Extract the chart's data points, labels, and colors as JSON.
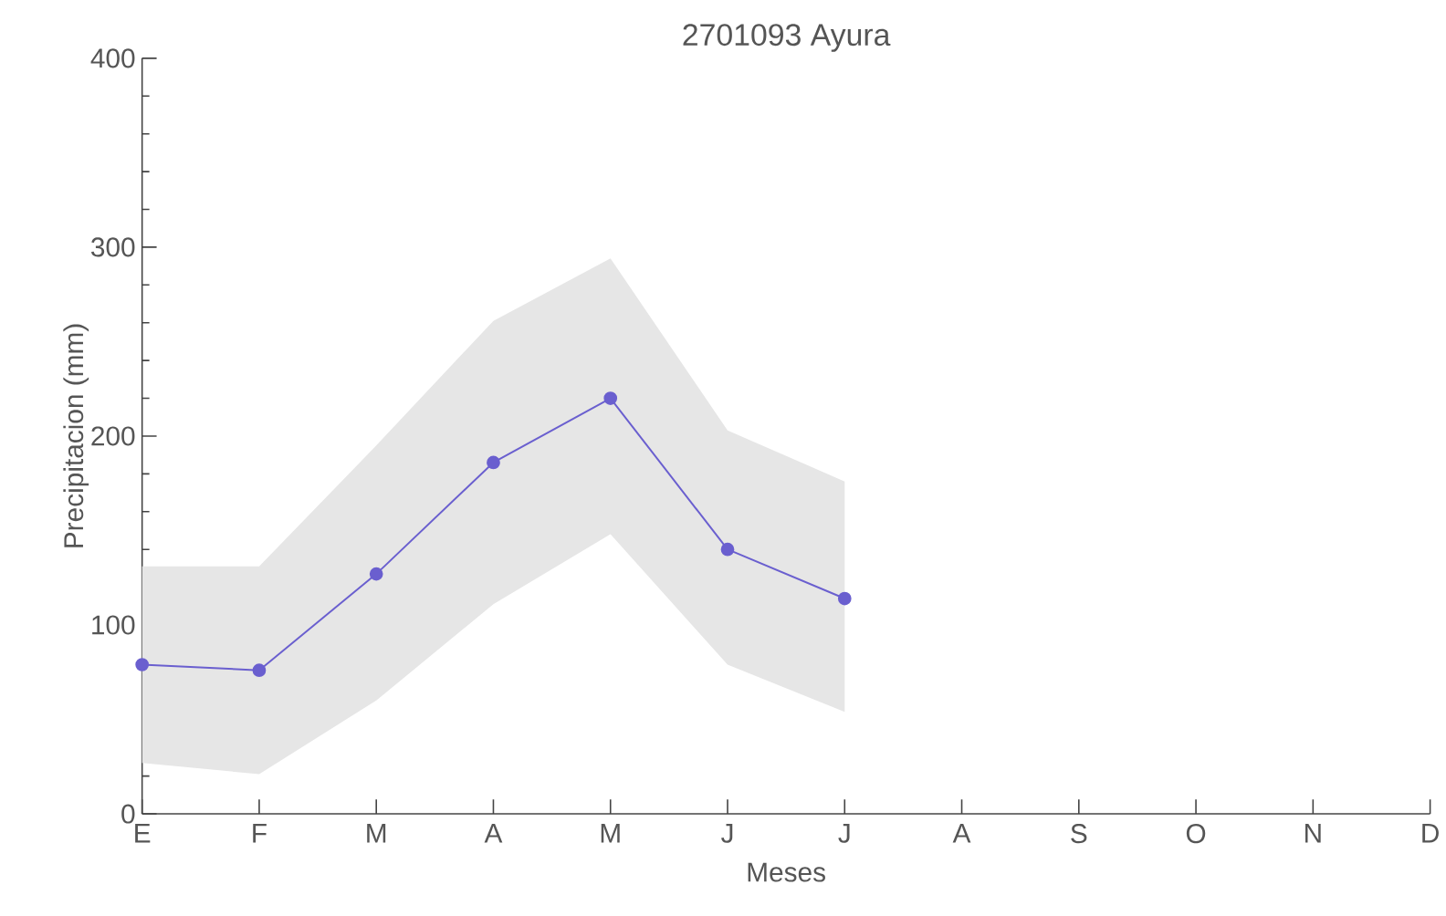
{
  "chart_data": {
    "type": "line",
    "title": "2701093 Ayura",
    "xlabel": "Meses",
    "ylabel": "Precipitacion (mm)",
    "categories": [
      "E",
      "F",
      "M",
      "A",
      "M",
      "J",
      "J",
      "A",
      "S",
      "O",
      "N",
      "D"
    ],
    "series": [
      {
        "color": "#6a5fcf",
        "values": [
          79,
          76,
          127,
          186,
          220,
          140,
          114,
          null,
          null,
          null,
          null,
          null
        ],
        "lower": [
          27,
          21,
          60,
          111,
          148,
          79,
          54,
          null,
          null,
          null,
          null,
          null
        ],
        "upper": [
          131,
          131,
          195,
          261,
          294,
          203,
          176,
          null,
          null,
          null,
          null,
          null
        ]
      }
    ],
    "ylim": [
      0,
      400
    ],
    "yticks": [
      0,
      100,
      200,
      300,
      400
    ],
    "grid": false,
    "marker": "circle",
    "line_style": "solid"
  }
}
